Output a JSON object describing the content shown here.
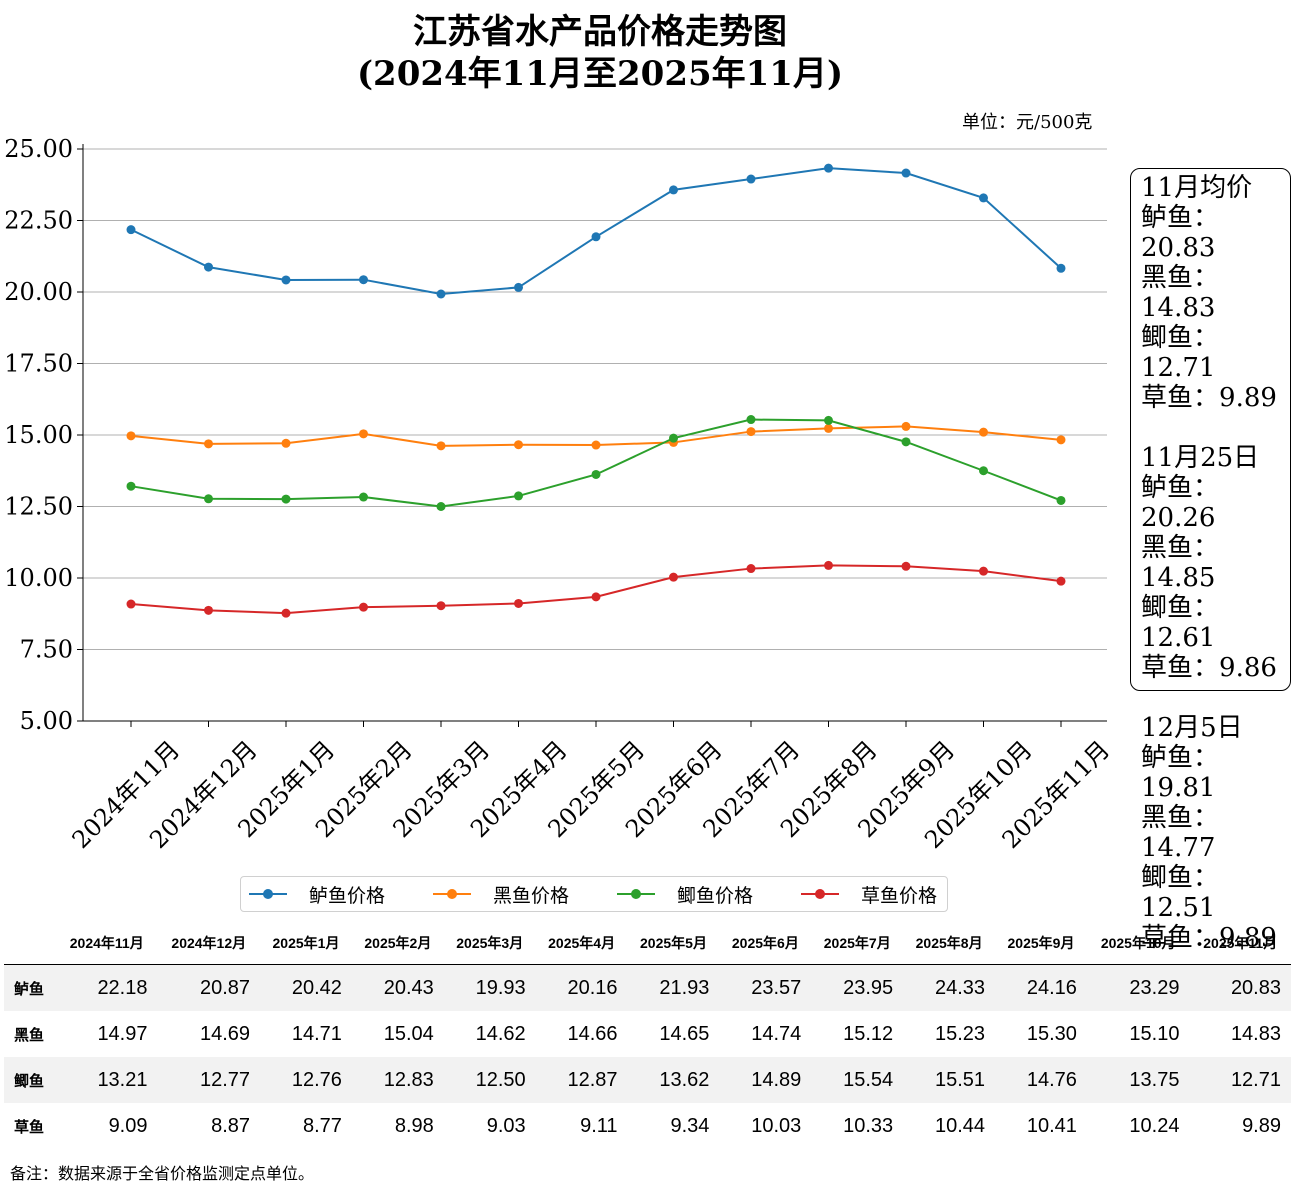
{
  "title": {
    "line1": "江苏省水产品价格走势图",
    "line2": "(2024年11月至2025年11月)"
  },
  "unit": "单位：元/500克",
  "chart_data": {
    "type": "line",
    "categories": [
      "2024年11月",
      "2024年12月",
      "2025年1月",
      "2025年2月",
      "2025年3月",
      "2025年4月",
      "2025年5月",
      "2025年6月",
      "2025年7月",
      "2025年8月",
      "2025年9月",
      "2025年10月",
      "2025年11月"
    ],
    "series": [
      {
        "name": "鲈鱼价格",
        "color": "#1f77b4",
        "values": [
          22.18,
          20.87,
          20.42,
          20.43,
          19.93,
          20.16,
          21.93,
          23.57,
          23.95,
          24.33,
          24.16,
          23.29,
          20.83
        ]
      },
      {
        "name": "黑鱼价格",
        "color": "#ff7f0e",
        "values": [
          14.97,
          14.69,
          14.71,
          15.04,
          14.62,
          14.66,
          14.65,
          14.74,
          15.12,
          15.23,
          15.3,
          15.1,
          14.83
        ]
      },
      {
        "name": "鲫鱼价格",
        "color": "#2ca02c",
        "values": [
          13.21,
          12.77,
          12.76,
          12.83,
          12.5,
          12.87,
          13.62,
          14.89,
          15.54,
          15.51,
          14.76,
          13.75,
          12.71
        ]
      },
      {
        "name": "草鱼价格",
        "color": "#d62728",
        "values": [
          9.09,
          8.87,
          8.77,
          8.98,
          9.03,
          9.11,
          9.34,
          10.03,
          10.33,
          10.44,
          10.41,
          10.24,
          9.89
        ]
      }
    ],
    "yticks": [
      "5.00",
      "7.50",
      "10.00",
      "12.50",
      "15.00",
      "17.50",
      "20.00",
      "22.50",
      "25.00"
    ],
    "ylim": [
      5,
      25
    ],
    "grid": "horizontal",
    "legend": "bottom"
  },
  "info_box": [
    {
      "heading": "11月均价",
      "lines": [
        {
          "fish": "鲈鱼",
          "value": "20.83"
        },
        {
          "fish": "黑鱼",
          "value": "14.83"
        },
        {
          "fish": "鲫鱼",
          "value": "12.71"
        },
        {
          "fish": "草鱼",
          "value": "9.89"
        }
      ]
    },
    {
      "heading": "11月25日",
      "lines": [
        {
          "fish": "鲈鱼",
          "value": "20.26"
        },
        {
          "fish": "黑鱼",
          "value": "14.85"
        },
        {
          "fish": "鲫鱼",
          "value": "12.61"
        },
        {
          "fish": "草鱼",
          "value": "9.86"
        }
      ]
    },
    {
      "heading": "12月5日",
      "lines": [
        {
          "fish": "鲈鱼",
          "value": "19.81"
        },
        {
          "fish": "黑鱼",
          "value": "14.77"
        },
        {
          "fish": "鲫鱼",
          "value": "12.51"
        },
        {
          "fish": "草鱼",
          "value": "9.89"
        }
      ]
    }
  ],
  "table": {
    "columns": [
      "2024年11月",
      "2024年12月",
      "2025年1月",
      "2025年2月",
      "2025年3月",
      "2025年4月",
      "2025年5月",
      "2025年6月",
      "2025年7月",
      "2025年8月",
      "2025年9月",
      "2025年10月",
      "2025年11月"
    ],
    "rows": [
      {
        "label": "鲈鱼",
        "values": [
          "22.18",
          "20.87",
          "20.42",
          "20.43",
          "19.93",
          "20.16",
          "21.93",
          "23.57",
          "23.95",
          "24.33",
          "24.16",
          "23.29",
          "20.83"
        ]
      },
      {
        "label": "黑鱼",
        "values": [
          "14.97",
          "14.69",
          "14.71",
          "15.04",
          "14.62",
          "14.66",
          "14.65",
          "14.74",
          "15.12",
          "15.23",
          "15.30",
          "15.10",
          "14.83"
        ]
      },
      {
        "label": "鲫鱼",
        "values": [
          "13.21",
          "12.77",
          "12.76",
          "12.83",
          "12.50",
          "12.87",
          "13.62",
          "14.89",
          "15.54",
          "15.51",
          "14.76",
          "13.75",
          "12.71"
        ]
      },
      {
        "label": "草鱼",
        "values": [
          "9.09",
          "8.87",
          "8.77",
          "8.98",
          "9.03",
          "9.11",
          "9.34",
          "10.03",
          "10.33",
          "10.44",
          "10.41",
          "10.24",
          "9.89"
        ]
      }
    ]
  },
  "note": "备注：数据来源于全省价格监测定点单位。"
}
